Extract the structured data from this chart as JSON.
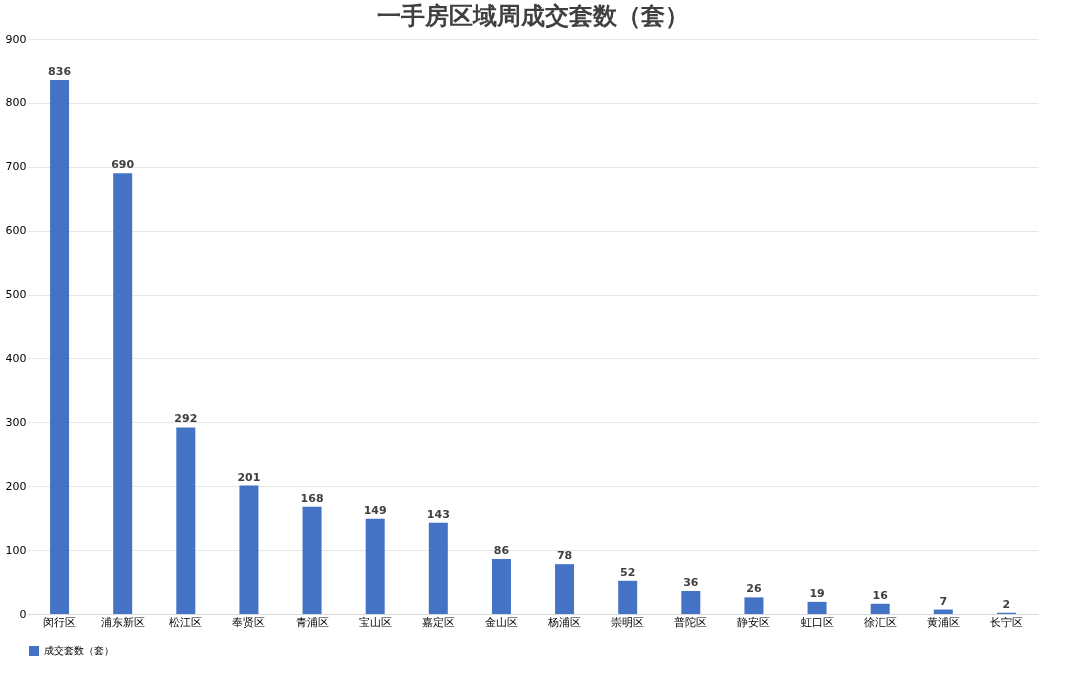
{
  "chart_data": {
    "type": "bar",
    "title": "一手房区域周成交套数（套）",
    "categories": [
      "闵行区",
      "浦东新区",
      "松江区",
      "奉贤区",
      "青浦区",
      "宝山区",
      "嘉定区",
      "金山区",
      "杨浦区",
      "崇明区",
      "普陀区",
      "静安区",
      "虹口区",
      "徐汇区",
      "黄浦区",
      "长宁区"
    ],
    "series": [
      {
        "name": "成交套数（套）",
        "color": "#4472c4",
        "values": [
          836,
          690,
          292,
          201,
          168,
          149,
          143,
          86,
          78,
          52,
          36,
          26,
          19,
          16,
          7,
          2
        ]
      }
    ],
    "ylim": [
      0,
      900
    ],
    "yticks": [
      0,
      100,
      200,
      300,
      400,
      500,
      600,
      700,
      800,
      900
    ],
    "grid": "y",
    "legend": "bottom",
    "data_labels": true
  }
}
